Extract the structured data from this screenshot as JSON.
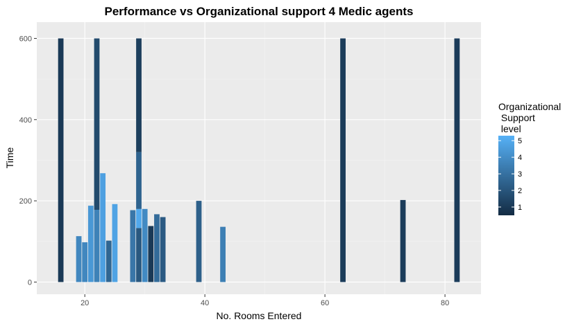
{
  "chart_data": {
    "type": "bar",
    "title": "Performance vs Organizational support 4 Medic agents",
    "xlabel": "No. Rooms Entered",
    "ylabel": "Time",
    "xlim": [
      12,
      86
    ],
    "ylim": [
      -30,
      640
    ],
    "x_ticks": [
      20,
      40,
      60,
      80
    ],
    "y_ticks": [
      0,
      200,
      400,
      600
    ],
    "x_tick_labels": [
      "20",
      "40",
      "60",
      "80"
    ],
    "y_tick_labels": [
      "0",
      "200",
      "400",
      "600"
    ],
    "grid": true,
    "legend": {
      "title_lines": [
        "Organizational",
        " Support",
        " level"
      ],
      "position": "right",
      "range": [
        0.5,
        5.3
      ],
      "ticks": [
        1,
        2,
        3,
        4,
        5
      ],
      "tick_labels": [
        "1",
        "2",
        "3",
        "4",
        "5"
      ],
      "low_color": "#132B43",
      "high_color": "#56B1F7"
    },
    "bar_width": 0.9,
    "colors": {
      "panel": "#EBEBEB",
      "grid_major": "#FFFFFF",
      "grid_minor": "#F4F4F4",
      "tick_text": "#4D4D4D"
    },
    "segments": [
      {
        "x": 16,
        "y0": 0,
        "y1": 600,
        "level": 1
      },
      {
        "x": 19,
        "y0": 0,
        "y1": 113,
        "level": 3.8
      },
      {
        "x": 20,
        "y0": 0,
        "y1": 98,
        "level": 3.8
      },
      {
        "x": 21,
        "y0": 0,
        "y1": 188,
        "level": 4.4
      },
      {
        "x": 22,
        "y0": 0,
        "y1": 178,
        "level": 3.6
      },
      {
        "x": 22,
        "y0": 178,
        "y1": 600,
        "level": 1.6
      },
      {
        "x": 23,
        "y0": 0,
        "y1": 268,
        "level": 4.7
      },
      {
        "x": 24,
        "y0": 0,
        "y1": 102,
        "level": 2.6
      },
      {
        "x": 25,
        "y0": 0,
        "y1": 192,
        "level": 4.8
      },
      {
        "x": 28,
        "y0": 0,
        "y1": 177,
        "level": 3.2
      },
      {
        "x": 29,
        "y0": 0,
        "y1": 133,
        "level": 2.1
      },
      {
        "x": 29,
        "y0": 133,
        "y1": 180,
        "level": 5.0
      },
      {
        "x": 29,
        "y0": 180,
        "y1": 320,
        "level": 2.5
      },
      {
        "x": 29,
        "y0": 320,
        "y1": 600,
        "level": 1.2
      },
      {
        "x": 30,
        "y0": 0,
        "y1": 180,
        "level": 3.9
      },
      {
        "x": 31,
        "y0": 0,
        "y1": 138,
        "level": 1.0
      },
      {
        "x": 32,
        "y0": 0,
        "y1": 167,
        "level": 2.8
      },
      {
        "x": 33,
        "y0": 0,
        "y1": 160,
        "level": 2.2
      },
      {
        "x": 39,
        "y0": 0,
        "y1": 200,
        "level": 2.4
      },
      {
        "x": 43,
        "y0": 0,
        "y1": 136,
        "level": 3.5
      },
      {
        "x": 63,
        "y0": 0,
        "y1": 600,
        "level": 1.1
      },
      {
        "x": 73,
        "y0": 0,
        "y1": 202,
        "level": 1.1
      },
      {
        "x": 82,
        "y0": 0,
        "y1": 600,
        "level": 1.1
      }
    ]
  }
}
